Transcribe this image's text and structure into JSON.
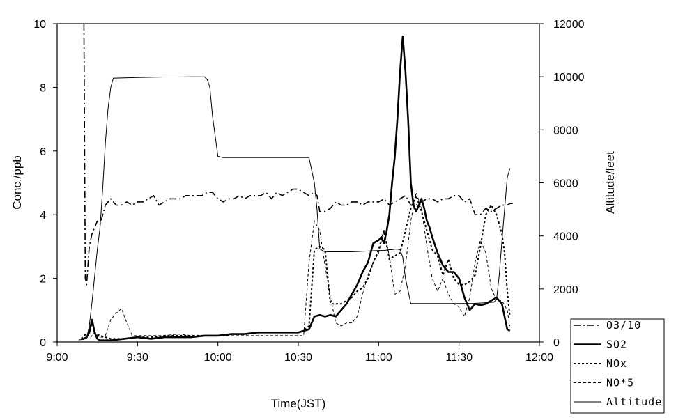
{
  "chart_data": {
    "type": "line",
    "xlabel": "Time(JST)",
    "ylabel": "Conc./ppb",
    "y2label": "Altitude/feet",
    "xlim": [
      540,
      720
    ],
    "ylim": [
      0,
      10
    ],
    "y2lim": [
      0,
      12000
    ],
    "x_ticks": [
      {
        "v": 540,
        "label": "9:00"
      },
      {
        "v": 570,
        "label": "9:30"
      },
      {
        "v": 600,
        "label": "10:00"
      },
      {
        "v": 630,
        "label": "10:30"
      },
      {
        "v": 660,
        "label": "11:00"
      },
      {
        "v": 690,
        "label": "11:30"
      },
      {
        "v": 720,
        "label": "12:00"
      }
    ],
    "y_ticks": [
      {
        "v": 0,
        "label": "0"
      },
      {
        "v": 2,
        "label": "2"
      },
      {
        "v": 4,
        "label": "4"
      },
      {
        "v": 6,
        "label": "6"
      },
      {
        "v": 8,
        "label": "8"
      },
      {
        "v": 10,
        "label": "10"
      }
    ],
    "y2_ticks": [
      {
        "v": 0,
        "label": "0"
      },
      {
        "v": 2000,
        "label": "2000"
      },
      {
        "v": 4000,
        "label": "4000"
      },
      {
        "v": 6000,
        "label": "6000"
      },
      {
        "v": 8000,
        "label": "8000"
      },
      {
        "v": 10000,
        "label": "10000"
      },
      {
        "v": 12000,
        "label": "12000"
      }
    ],
    "legend_position": "bottom-right outside",
    "series": [
      {
        "name": "O3/10",
        "axis": "left",
        "style": "dashdot",
        "x": [
          550,
          550.5,
          551,
          552,
          553,
          554,
          555,
          556,
          557,
          558,
          560,
          562,
          564,
          566,
          568,
          570,
          572,
          574,
          576,
          578,
          580,
          582,
          584,
          586,
          588,
          590,
          592,
          594,
          596,
          598,
          600,
          602,
          604,
          606,
          608,
          610,
          612,
          614,
          616,
          618,
          620,
          622,
          624,
          626,
          628,
          630,
          632,
          634,
          636,
          637,
          638,
          640,
          642,
          644,
          646,
          648,
          650,
          652,
          654,
          656,
          658,
          660,
          662,
          664,
          666,
          668,
          670,
          672,
          674,
          676,
          678,
          680,
          682,
          684,
          686,
          688,
          690,
          692,
          694,
          696,
          698,
          700,
          702,
          704,
          706,
          708,
          709,
          710
        ],
        "y": [
          10,
          2.0,
          1.8,
          3.0,
          3.4,
          3.6,
          3.8,
          3.7,
          4.0,
          4.3,
          4.5,
          4.3,
          4.3,
          4.4,
          4.3,
          4.4,
          4.4,
          4.5,
          4.6,
          4.3,
          4.4,
          4.5,
          4.5,
          4.5,
          4.6,
          4.6,
          4.6,
          4.6,
          4.7,
          4.7,
          4.5,
          4.4,
          4.5,
          4.5,
          4.6,
          4.5,
          4.6,
          4.6,
          4.6,
          4.7,
          4.5,
          4.7,
          4.6,
          4.7,
          4.8,
          4.8,
          4.7,
          4.6,
          4.7,
          4.6,
          4.1,
          4.1,
          4.2,
          4.4,
          4.3,
          4.3,
          4.4,
          4.4,
          4.3,
          4.4,
          4.4,
          4.4,
          4.5,
          4.3,
          4.4,
          4.5,
          4.6,
          4.3,
          4.3,
          4.4,
          4.5,
          4.5,
          4.4,
          4.5,
          4.5,
          4.6,
          4.6,
          4.4,
          4.5,
          4.0,
          4.0,
          4.2,
          4.1,
          4.2,
          4.3,
          4.3,
          4.35,
          4.35
        ]
      },
      {
        "name": "SO2",
        "axis": "left",
        "style": "solid-bold",
        "x": [
          549,
          550,
          551,
          552,
          553,
          554,
          555,
          556,
          558,
          560,
          565,
          570,
          575,
          580,
          585,
          590,
          595,
          600,
          605,
          610,
          615,
          620,
          625,
          630,
          632,
          634,
          636,
          638,
          640,
          642,
          644,
          646,
          648,
          650,
          652,
          654,
          656,
          658,
          660,
          661,
          662,
          663,
          664,
          665,
          666,
          667,
          668,
          669,
          670,
          671,
          672,
          673,
          674,
          675,
          676,
          677,
          678,
          679,
          680,
          682,
          684,
          686,
          688,
          690,
          692,
          694,
          696,
          698,
          700,
          702,
          704,
          706,
          707,
          708,
          709
        ],
        "y": [
          0.1,
          0.1,
          0.15,
          0.3,
          0.7,
          0.3,
          0.1,
          0.05,
          0.05,
          0.05,
          0.1,
          0.15,
          0.1,
          0.15,
          0.15,
          0.15,
          0.2,
          0.2,
          0.25,
          0.25,
          0.3,
          0.3,
          0.3,
          0.3,
          0.35,
          0.4,
          0.8,
          0.85,
          0.8,
          0.85,
          0.8,
          1.0,
          1.2,
          1.5,
          1.8,
          2.2,
          2.5,
          3.1,
          3.2,
          3.3,
          3.1,
          3.5,
          4.0,
          5.0,
          5.8,
          7.0,
          8.5,
          9.6,
          8.5,
          7.0,
          5.0,
          4.3,
          4.1,
          4.3,
          4.5,
          4.2,
          3.8,
          3.6,
          3.3,
          2.8,
          2.4,
          2.2,
          2.2,
          2.0,
          1.4,
          1.0,
          1.2,
          1.15,
          1.2,
          1.3,
          1.4,
          1.2,
          0.8,
          0.4,
          0.35
        ]
      },
      {
        "name": "NOx",
        "axis": "left",
        "style": "dotted",
        "x": [
          549,
          550,
          551,
          552,
          553,
          554,
          556,
          558,
          560,
          565,
          570,
          575,
          580,
          585,
          590,
          595,
          600,
          605,
          610,
          615,
          620,
          625,
          630,
          632,
          634,
          636,
          638,
          640,
          642,
          644,
          646,
          648,
          650,
          652,
          654,
          656,
          658,
          660,
          662,
          664,
          666,
          668,
          670,
          672,
          674,
          676,
          678,
          680,
          682,
          684,
          686,
          688,
          690,
          692,
          694,
          696,
          698,
          700,
          702,
          704,
          706,
          707,
          708,
          709
        ],
        "y": [
          0.1,
          0.2,
          0.25,
          0.3,
          0.6,
          0.3,
          0.2,
          0.15,
          0.1,
          0.1,
          0.15,
          0.15,
          0.2,
          0.2,
          0.2,
          0.2,
          0.2,
          0.25,
          0.25,
          0.3,
          0.3,
          0.3,
          0.3,
          0.35,
          0.5,
          2.9,
          3.0,
          2.9,
          1.2,
          1.2,
          1.2,
          1.3,
          1.4,
          1.6,
          1.7,
          2.0,
          2.5,
          2.9,
          3.5,
          2.6,
          2.7,
          2.8,
          3.5,
          4.2,
          4.6,
          4.1,
          3.5,
          2.9,
          2.7,
          2.1,
          2.6,
          2.0,
          1.8,
          1.8,
          1.9,
          2.1,
          3.0,
          4.0,
          4.3,
          4.0,
          3.4,
          2.8,
          1.6,
          0.8
        ]
      },
      {
        "name": "NO*5",
        "axis": "left",
        "style": "dashed-thin",
        "x": [
          549,
          550,
          551,
          552,
          553,
          554,
          555,
          556,
          557,
          558,
          560,
          562,
          564,
          566,
          568,
          570,
          575,
          580,
          585,
          590,
          595,
          600,
          605,
          610,
          615,
          620,
          625,
          630,
          632,
          634,
          636,
          638,
          640,
          642,
          644,
          646,
          648,
          650,
          652,
          654,
          656,
          658,
          660,
          662,
          664,
          666,
          668,
          670,
          672,
          674,
          676,
          678,
          680,
          682,
          684,
          686,
          688,
          690,
          692,
          694,
          696,
          698,
          700,
          702,
          704,
          706,
          708,
          709
        ],
        "y": [
          0.1,
          0.1,
          0.1,
          0.1,
          0.2,
          0.3,
          0.2,
          0.15,
          0.15,
          0.2,
          0.7,
          0.9,
          1.05,
          0.6,
          0.2,
          0.2,
          0.2,
          0.2,
          0.25,
          0.2,
          0.2,
          0.2,
          0.2,
          0.2,
          0.2,
          0.2,
          0.2,
          0.2,
          0.2,
          2.5,
          3.8,
          3.5,
          2.4,
          1.4,
          0.6,
          0.5,
          0.6,
          0.6,
          0.8,
          1.5,
          2.1,
          2.5,
          2.8,
          3.5,
          2.7,
          1.5,
          1.6,
          2.4,
          3.8,
          4.7,
          4.2,
          3.0,
          2.0,
          1.6,
          2.0,
          1.5,
          1.2,
          1.1,
          0.8,
          1.4,
          2.5,
          3.2,
          2.8,
          1.7,
          1.3,
          1.3,
          1.0,
          0.5
        ]
      },
      {
        "name": "Altitude",
        "axis": "right",
        "style": "solid-thin",
        "x": [
          548,
          550,
          551,
          552,
          553,
          555,
          556,
          557,
          558,
          559,
          560,
          561,
          562,
          565,
          570,
          575,
          580,
          585,
          590,
          595,
          596,
          597,
          598,
          600,
          602,
          610,
          620,
          630,
          634,
          636,
          637,
          638,
          640,
          650,
          660,
          662,
          664,
          665,
          666,
          667,
          668,
          669,
          670,
          672,
          680,
          690,
          695,
          700,
          703,
          704,
          705,
          706,
          707,
          708,
          709
        ],
        "y": [
          80,
          100,
          150,
          600,
          1500,
          3500,
          4300,
          5800,
          7500,
          8800,
          9600,
          9950,
          9950,
          9960,
          9970,
          9980,
          9990,
          9990,
          10000,
          10000,
          9900,
          9600,
          8500,
          7000,
          6950,
          6950,
          6950,
          6950,
          6950,
          6000,
          5000,
          3500,
          3400,
          3400,
          3450,
          3450,
          3480,
          3480,
          3500,
          3500,
          3480,
          3200,
          2400,
          1450,
          1450,
          1450,
          1450,
          1480,
          1500,
          1600,
          2500,
          3800,
          5000,
          6200,
          6550
        ]
      }
    ]
  }
}
